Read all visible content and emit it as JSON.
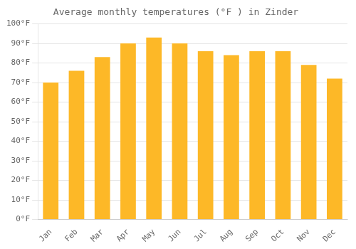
{
  "chart_data": {
    "type": "bar",
    "title": "Average monthly temperatures (°F ) in Zinder",
    "categories": [
      "Jan",
      "Feb",
      "Mar",
      "Apr",
      "May",
      "Jun",
      "Jul",
      "Aug",
      "Sep",
      "Oct",
      "Nov",
      "Dec"
    ],
    "values": [
      70,
      76,
      83,
      90,
      93,
      90,
      86,
      84,
      86,
      86,
      79,
      72
    ],
    "color": "#FDB827",
    "ylim": [
      0,
      100
    ],
    "yticks": [
      {
        "value": 0,
        "label": "0°F"
      },
      {
        "value": 10,
        "label": "10°F"
      },
      {
        "value": 20,
        "label": "20°F"
      },
      {
        "value": 30,
        "label": "30°F"
      },
      {
        "value": 40,
        "label": "40°F"
      },
      {
        "value": 50,
        "label": "50°F"
      },
      {
        "value": 60,
        "label": "60°F"
      },
      {
        "value": 70,
        "label": "70°F"
      },
      {
        "value": 80,
        "label": "80°F"
      },
      {
        "value": 90,
        "label": "90°F"
      },
      {
        "value": 100,
        "label": "100°F"
      }
    ],
    "grid": true
  }
}
